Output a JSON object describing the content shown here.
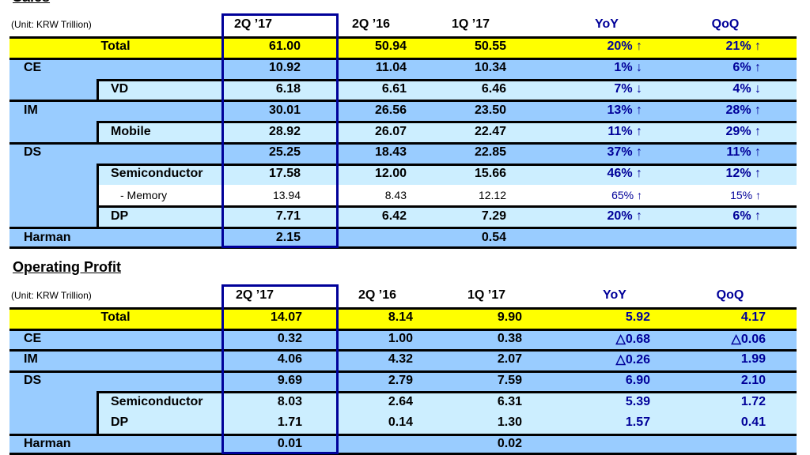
{
  "colors": {
    "yellow": "#FFFF00",
    "mid_blue": "#99CCFF",
    "light_blue": "#CCEEFF",
    "accent_text": "#000099"
  },
  "tables": [
    {
      "title": "Sales",
      "unit": "(Unit: KRW Trillion)",
      "headers": [
        "2Q ’17",
        "2Q ’16",
        "1Q ’17",
        "YoY",
        "QoQ"
      ],
      "rows": [
        {
          "label": "Total",
          "kind": "total",
          "values": [
            "61.00",
            "50.94",
            "50.55",
            "20% ↑",
            "21% ↑"
          ]
        },
        {
          "label": "CE",
          "kind": "main",
          "values": [
            "10.92",
            "11.04",
            "10.34",
            "1% ↓",
            "6% ↑"
          ]
        },
        {
          "label": "VD",
          "kind": "sub",
          "values": [
            "6.18",
            "6.61",
            "6.46",
            "7% ↓",
            "4% ↓"
          ]
        },
        {
          "label": "IM",
          "kind": "main",
          "values": [
            "30.01",
            "26.56",
            "23.50",
            "13% ↑",
            "28% ↑"
          ]
        },
        {
          "label": "Mobile",
          "kind": "sub",
          "values": [
            "28.92",
            "26.07",
            "22.47",
            "11% ↑",
            "29% ↑"
          ]
        },
        {
          "label": "DS",
          "kind": "main",
          "values": [
            "25.25",
            "18.43",
            "22.85",
            "37% ↑",
            "11% ↑"
          ]
        },
        {
          "label": "Semiconductor",
          "kind": "sub",
          "values": [
            "17.58",
            "12.00",
            "15.66",
            "46% ↑",
            "12% ↑"
          ]
        },
        {
          "label": "- Memory",
          "kind": "memory",
          "values": [
            "13.94",
            "8.43",
            "12.12",
            "65% ↑",
            "15% ↑"
          ]
        },
        {
          "label": "DP",
          "kind": "sub",
          "values": [
            "7.71",
            "6.42",
            "7.29",
            "20% ↑",
            "6% ↑"
          ]
        },
        {
          "label": "Harman",
          "kind": "main",
          "values": [
            "2.15",
            "",
            "0.54",
            "",
            ""
          ]
        }
      ]
    },
    {
      "title": "Operating Profit",
      "unit": "(Unit: KRW Trillion)",
      "headers": [
        "2Q ’17",
        "2Q ’16",
        "1Q ’17",
        "YoY",
        "QoQ"
      ],
      "rows": [
        {
          "label": "Total",
          "kind": "total",
          "values": [
            "14.07",
            "8.14",
            "9.90",
            "5.92",
            "4.17"
          ]
        },
        {
          "label": "CE",
          "kind": "main",
          "values": [
            "0.32",
            "1.00",
            "0.38",
            "△0.68",
            "△0.06"
          ]
        },
        {
          "label": "IM",
          "kind": "main",
          "values": [
            "4.06",
            "4.32",
            "2.07",
            "△0.26",
            "1.99"
          ]
        },
        {
          "label": "DS",
          "kind": "main",
          "values": [
            "9.69",
            "2.79",
            "7.59",
            "6.90",
            "2.10"
          ]
        },
        {
          "label": "Semiconductor",
          "kind": "sub",
          "values": [
            "8.03",
            "2.64",
            "6.31",
            "5.39",
            "1.72"
          ]
        },
        {
          "label": "DP",
          "kind": "subcont",
          "values": [
            "1.71",
            "0.14",
            "1.30",
            "1.57",
            "0.41"
          ]
        },
        {
          "label": "Harman",
          "kind": "main",
          "values": [
            "0.01",
            "",
            "0.02",
            "",
            ""
          ]
        }
      ]
    }
  ]
}
